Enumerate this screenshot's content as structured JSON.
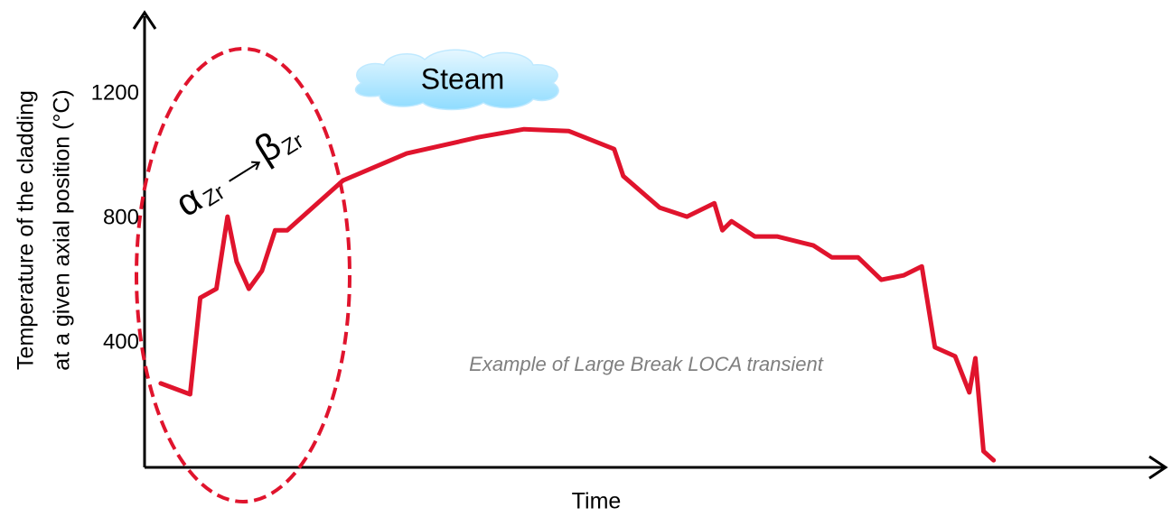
{
  "chart_data": {
    "type": "line",
    "ylabel": [
      "Temperature of the cladding",
      "at a given axial position (°C)"
    ],
    "xlabel": "Time",
    "annotation": "Example of Large Break LOCA transient",
    "cloud_label": "Steam",
    "phase_from": "α",
    "phase_from_sub": "Zr",
    "phase_to": "β",
    "phase_to_sub": "Zr",
    "color": "#e0142d",
    "xlim": [
      0,
      100
    ],
    "ylim": [
      0,
      1450
    ],
    "yticks": [
      400,
      800,
      1200
    ],
    "grid": false,
    "x": [
      1.6,
      4.5,
      5.5,
      7.1,
      8.2,
      9.1,
      10.3,
      11.6,
      12.9,
      14.1,
      19.6,
      25.9,
      33.0,
      37.5,
      41.9,
      46.4,
      47.3,
      50.9,
      53.6,
      56.3,
      57.1,
      58.0,
      60.3,
      62.5,
      66.1,
      67.9,
      70.5,
      72.8,
      75.0,
      76.8,
      78.1,
      80.1,
      81.5,
      82.1,
      82.9,
      83.9
    ],
    "values": [
      270,
      235,
      545,
      574,
      806,
      661,
      574,
      632,
      762,
      762,
      922,
      1009,
      1061,
      1087,
      1081,
      1023,
      936,
      835,
      806,
      849,
      762,
      791,
      742,
      742,
      713,
      675,
      675,
      603,
      617,
      646,
      386,
      357,
      241,
      351,
      52,
      23
    ]
  }
}
